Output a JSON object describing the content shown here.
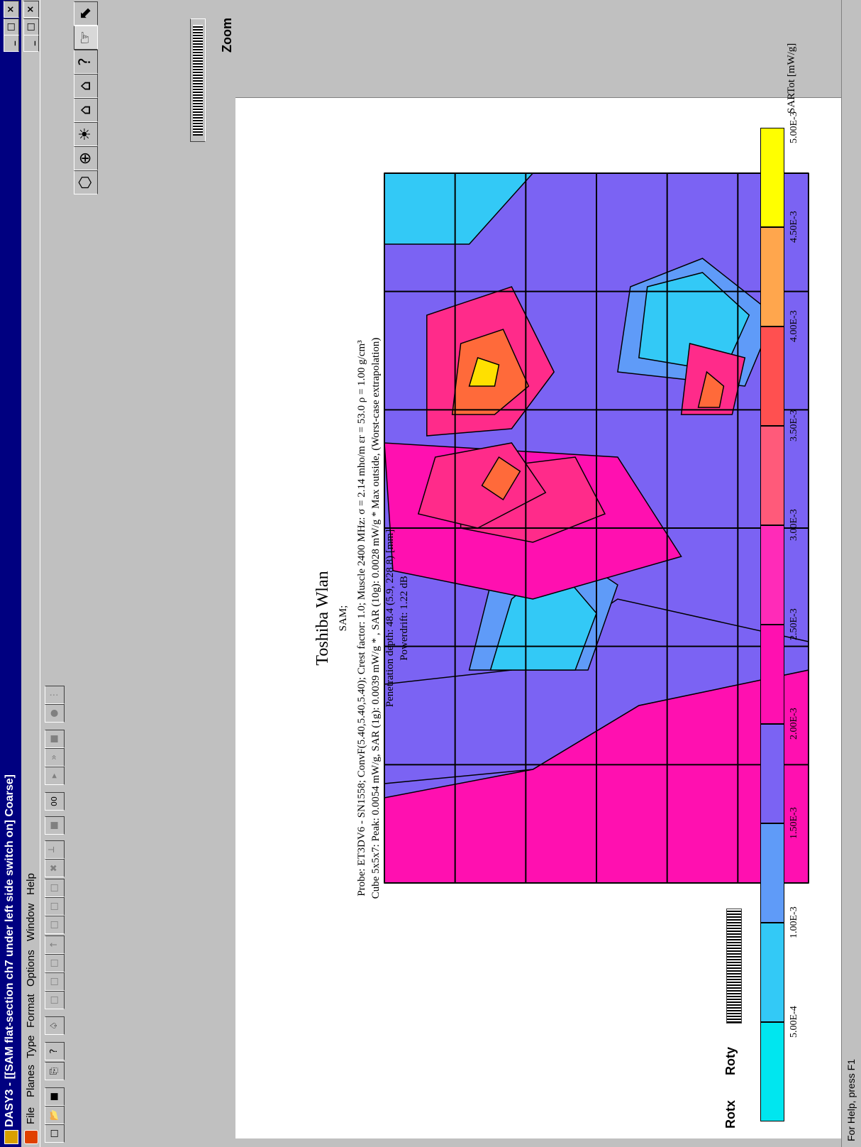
{
  "window": {
    "title": "DASY3 - [[SAM flat-section ch7 under left side switch on]  Coarse]",
    "controls": [
      "_",
      "□",
      "×"
    ],
    "doc_controls": [
      "_",
      "□",
      "×"
    ]
  },
  "menu": {
    "items": [
      "File",
      "Planes",
      "Type",
      "Format",
      "Options",
      "Window",
      "Help"
    ]
  },
  "toolbar": {
    "buttons": [
      "new",
      "open",
      "save",
      "print",
      "help",
      "query",
      "layer1",
      "layer2",
      "layer3",
      "up",
      "layer4",
      "layer5",
      "layer6",
      "tools",
      "tree",
      "stop",
      "00",
      "play",
      "fast-forward",
      "stop2",
      "record",
      "dots"
    ],
    "counter_label": "00"
  },
  "view_tools": {
    "labels": [
      "Zoom",
      "Rotx",
      "Roty"
    ]
  },
  "plot": {
    "title": "Toshiba Wlan",
    "subtitle": "SAM;",
    "info_lines": [
      "Probe: ET3DV6 - SN1558; ConvF(5.40,5.40,5.40); Crest factor: 1.0; Muscle 2400 MHz: σ = 2.14 mho/m εr = 53.0 ρ = 1.00 g/cm³",
      "Cube 5x5x7: Peak: 0.0054 mW/g, SAR (1g): 0.0039 mW/g * , SAR (10g): 0.0028 mW/g * Max outside, (Worst-case extrapolation)",
      "Penetration depth: 48.4 (5.9, 228.8) [mm]",
      "Powerdrift: 1.22 dB"
    ]
  },
  "legend": {
    "unit_label": "SARTot [mW/g]",
    "ticks": [
      "5.00E-4",
      "1.00E-3",
      "1.50E-3",
      "2.00E-3",
      "2.50E-3",
      "3.00E-3",
      "3.50E-3",
      "4.00E-3",
      "4.50E-3",
      "5.00E-3"
    ],
    "colors": [
      "#00e6ef",
      "#33c9f6",
      "#5f9bf8",
      "#7b63f3",
      "#ff10b0",
      "#ff2bb8",
      "#ff5a7a",
      "#ff5050",
      "#ffa64d",
      "#ffff00"
    ]
  },
  "contour_colors": {
    "level1": "#00e6ef",
    "level2": "#33c9f6",
    "level3": "#5f9bf8",
    "level4": "#7b63f3",
    "level5": "#ff10b0",
    "level6": "#ff2b8a",
    "level7": "#ff6a3a",
    "level8": "#ffe000"
  },
  "status": {
    "text": "For Help, press F1"
  }
}
